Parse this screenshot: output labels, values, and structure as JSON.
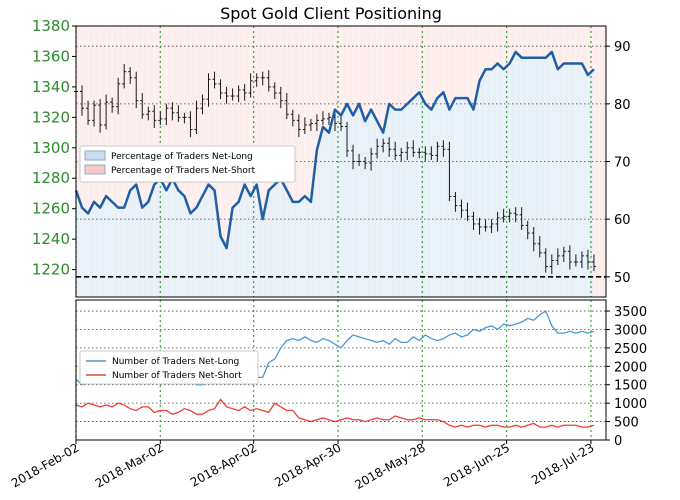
{
  "chart_data": [
    {
      "type": "line",
      "title": "Spot Gold Client Positioning",
      "xlabel": "",
      "ylabel": "",
      "x_ticks": [
        "2018-Feb-02",
        "2018-Mar-02",
        "2018-Apr-02",
        "2018-Apr-30",
        "2018-May-28",
        "2018-Jun-25",
        "2018-Jul-23"
      ],
      "y_left_ticks": [
        1220,
        1240,
        1260,
        1280,
        1300,
        1320,
        1340,
        1360,
        1380
      ],
      "y_left_lim": [
        1202,
        1380
      ],
      "y_right_ticks": [
        50,
        60,
        70,
        80,
        90
      ],
      "y_right_lim": [
        46.5,
        93.5
      ],
      "grid": true,
      "legend_position": "center-left",
      "legend": [
        {
          "label": "Percentage of Traders Net-Long",
          "color": "#c9ddf2"
        },
        {
          "label": "Percentage of Traders Net-Short",
          "color": "#f7c9c9"
        }
      ],
      "reference_lines": [
        50
      ],
      "series": [
        {
          "name": "Percentage of Traders Net-Long",
          "axis": "right",
          "color": "#1f5fa6",
          "x_day": [
            0,
            2,
            4,
            6,
            8,
            10,
            12,
            14,
            16,
            18,
            20,
            22,
            24,
            26,
            28,
            30,
            32,
            34,
            36,
            38,
            40,
            42,
            44,
            46,
            48,
            50,
            52,
            54,
            56,
            58,
            60,
            62,
            64,
            66,
            68,
            70,
            72,
            74,
            76,
            78,
            80,
            82,
            84,
            86,
            88,
            90,
            92,
            94,
            96,
            98,
            100,
            102,
            104,
            106,
            108,
            110,
            112,
            114,
            116,
            118,
            120,
            122,
            124,
            126,
            128,
            130,
            132,
            134,
            136,
            138,
            140,
            142,
            144,
            146,
            148,
            150,
            152,
            154,
            156,
            158,
            160,
            162,
            164,
            166,
            168,
            170,
            172
          ],
          "values": [
            65,
            62,
            61,
            63,
            62,
            64,
            63,
            62,
            62,
            65,
            66,
            62,
            63,
            66,
            67,
            65,
            67,
            65,
            64,
            61,
            62,
            64,
            66,
            65,
            57,
            55,
            62,
            63,
            66,
            64,
            66,
            60,
            65,
            66,
            67,
            65,
            63,
            63,
            64,
            63,
            72,
            76,
            75,
            79,
            78,
            80,
            78,
            80,
            77,
            79,
            77,
            75,
            80,
            79,
            79,
            80,
            81,
            82,
            80,
            79,
            81,
            82,
            79,
            81,
            81,
            81,
            79,
            84,
            86,
            86,
            87,
            86,
            87,
            89,
            88,
            88,
            88,
            88,
            88,
            89,
            86,
            87,
            87,
            87,
            87,
            85,
            86
          ]
        },
        {
          "name": "",
          "axis": "left",
          "kind": "ohlc",
          "color": "#000000",
          "x_day": [
            0,
            2,
            4,
            6,
            8,
            10,
            12,
            14,
            16,
            18,
            20,
            22,
            24,
            26,
            28,
            30,
            32,
            34,
            36,
            38,
            40,
            42,
            44,
            46,
            48,
            50,
            52,
            54,
            56,
            58,
            60,
            62,
            64,
            66,
            68,
            70,
            72,
            74,
            76,
            78,
            80,
            82,
            84,
            86,
            88,
            90,
            92,
            94,
            96,
            98,
            100,
            102,
            104,
            106,
            108,
            110,
            112,
            114,
            116,
            118,
            120,
            122,
            124,
            126,
            128,
            130,
            132,
            134,
            136,
            138,
            140,
            142,
            144,
            146,
            148,
            150,
            152,
            154,
            156,
            158,
            160,
            162,
            164,
            166,
            168,
            170,
            172
          ],
          "values": [
            1337,
            1326,
            1318,
            1328,
            1315,
            1330,
            1327,
            1342,
            1350,
            1346,
            1331,
            1322,
            1324,
            1318,
            1319,
            1326,
            1323,
            1320,
            1320,
            1312,
            1326,
            1332,
            1345,
            1342,
            1336,
            1334,
            1334,
            1338,
            1336,
            1344,
            1346,
            1346,
            1340,
            1336,
            1331,
            1322,
            1318,
            1312,
            1315,
            1316,
            1318,
            1319,
            1320,
            1316,
            1314,
            1298,
            1291,
            1291,
            1290,
            1296,
            1301,
            1303,
            1299,
            1295,
            1297,
            1300,
            1297,
            1297,
            1296,
            1295,
            1301,
            1299,
            1268,
            1262,
            1259,
            1255,
            1250,
            1248,
            1248,
            1250,
            1254,
            1255,
            1257,
            1256,
            1249,
            1244,
            1237,
            1231,
            1222,
            1226,
            1229,
            1232,
            1225,
            1225,
            1229,
            1225,
            1222
          ]
        }
      ]
    },
    {
      "type": "line",
      "title": "",
      "xlabel": "",
      "ylabel": "",
      "y_right_ticks": [
        0,
        500,
        1000,
        1500,
        2000,
        2500,
        3000,
        3500
      ],
      "y_right_lim": [
        0,
        3800
      ],
      "grid": true,
      "legend_position": "center-left",
      "series": [
        {
          "name": "Number of Traders Net-Long",
          "color": "#4a98d8",
          "x_day": [
            0,
            2,
            4,
            6,
            8,
            10,
            12,
            14,
            16,
            18,
            20,
            22,
            24,
            26,
            28,
            30,
            32,
            34,
            36,
            38,
            40,
            42,
            44,
            46,
            48,
            50,
            52,
            54,
            56,
            58,
            60,
            62,
            64,
            66,
            68,
            70,
            72,
            74,
            76,
            78,
            80,
            82,
            84,
            86,
            88,
            90,
            92,
            94,
            96,
            98,
            100,
            102,
            104,
            106,
            108,
            110,
            112,
            114,
            116,
            118,
            120,
            122,
            124,
            126,
            128,
            130,
            132,
            134,
            136,
            138,
            140,
            142,
            144,
            146,
            148,
            150,
            152,
            154,
            156,
            158,
            160,
            162,
            164,
            166,
            168,
            170,
            172
          ],
          "values": [
            1650,
            1500,
            1600,
            1550,
            1650,
            1600,
            1650,
            1700,
            1650,
            1600,
            1700,
            1650,
            1700,
            1650,
            1700,
            1650,
            1700,
            1650,
            1700,
            1600,
            1500,
            1500,
            1600,
            1650,
            1600,
            1700,
            1650,
            1600,
            1750,
            1700,
            1700,
            1700,
            2100,
            2200,
            2500,
            2700,
            2750,
            2700,
            2800,
            2700,
            2650,
            2750,
            2700,
            2600,
            2500,
            2700,
            2850,
            2800,
            2750,
            2700,
            2650,
            2700,
            2600,
            2750,
            2650,
            2650,
            2800,
            2700,
            2850,
            2750,
            2700,
            2750,
            2850,
            2900,
            2800,
            2850,
            3000,
            2950,
            3050,
            3100,
            3000,
            3150,
            3100,
            3150,
            3200,
            3300,
            3250,
            3400,
            3500,
            3100,
            2900,
            2900,
            2950,
            2900,
            2950,
            2900,
            2950
          ]
        },
        {
          "name": "Number of Traders Net-Short",
          "color": "#e8413a",
          "x_day": [
            0,
            2,
            4,
            6,
            8,
            10,
            12,
            14,
            16,
            18,
            20,
            22,
            24,
            26,
            28,
            30,
            32,
            34,
            36,
            38,
            40,
            42,
            44,
            46,
            48,
            50,
            52,
            54,
            56,
            58,
            60,
            62,
            64,
            66,
            68,
            70,
            72,
            74,
            76,
            78,
            80,
            82,
            84,
            86,
            88,
            90,
            92,
            94,
            96,
            98,
            100,
            102,
            104,
            106,
            108,
            110,
            112,
            114,
            116,
            118,
            120,
            122,
            124,
            126,
            128,
            130,
            132,
            134,
            136,
            138,
            140,
            142,
            144,
            146,
            148,
            150,
            152,
            154,
            156,
            158,
            160,
            162,
            164,
            166,
            168,
            170,
            172
          ],
          "values": [
            950,
            900,
            1000,
            950,
            900,
            950,
            900,
            1000,
            950,
            850,
            800,
            900,
            900,
            750,
            800,
            800,
            700,
            750,
            850,
            800,
            700,
            700,
            800,
            850,
            1100,
            900,
            850,
            800,
            900,
            800,
            850,
            800,
            750,
            1000,
            900,
            800,
            800,
            600,
            550,
            500,
            550,
            600,
            550,
            500,
            550,
            600,
            550,
            550,
            500,
            550,
            600,
            550,
            550,
            650,
            600,
            550,
            550,
            600,
            550,
            550,
            550,
            500,
            400,
            350,
            400,
            350,
            400,
            400,
            350,
            400,
            400,
            350,
            350,
            400,
            350,
            400,
            450,
            350,
            350,
            400,
            350,
            400,
            400,
            400,
            350,
            350,
            400
          ]
        }
      ]
    }
  ]
}
